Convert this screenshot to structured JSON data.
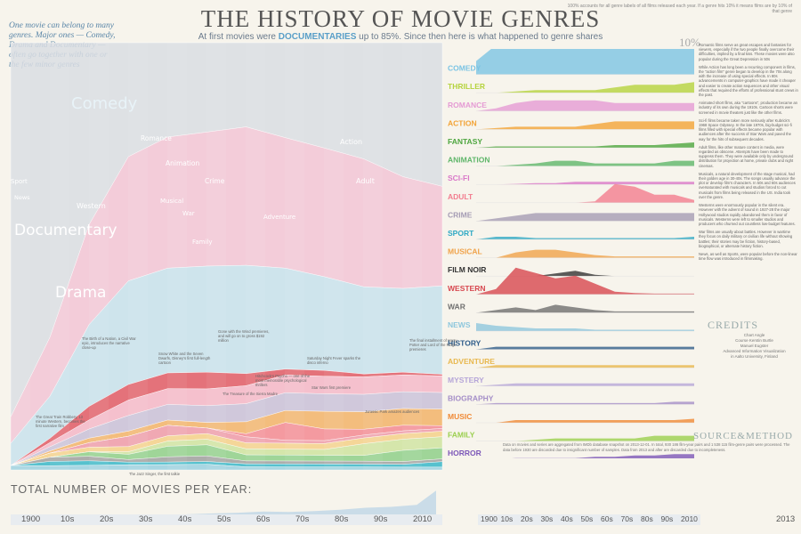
{
  "header": {
    "title": "THE HISTORY OF MOVIE GENRES",
    "subtitle_pre": "At first movies were ",
    "subtitle_em": "DOCUMENTARIES",
    "subtitle_post": " up to 85%. Since then here is what happened to genre shares",
    "intro": "One movie can belong to many genres. Major ones — Comedy, Drama and Documentary — often go together with one or the few minor genres",
    "top_note": "100% accounts for all genre labels of all films released each year. If a genre hits 10% it means films are by 10% of that genre"
  },
  "chart_data": [
    {
      "type": "area",
      "subtype": "stacked-streamgraph",
      "x_range": [
        1900,
        2010
      ],
      "stream_labels": [
        "Comedy",
        "Romance",
        "Action",
        "Animation",
        "Crime",
        "Sport",
        "News",
        "Western",
        "Musical",
        "War",
        "Adventure",
        "Adult",
        "Family",
        "Documentary",
        "Drama"
      ],
      "series": [
        {
          "name": "Documentary",
          "color": "#d9dde3",
          "values": [
            85,
            70,
            40,
            22,
            18,
            16,
            14,
            16,
            18,
            20,
            24,
            26
          ]
        },
        {
          "name": "Drama",
          "color": "#f2c4d6",
          "values": [
            6,
            14,
            22,
            24,
            25,
            24,
            23,
            22,
            22,
            22,
            20,
            18
          ]
        },
        {
          "name": "Comedy",
          "color": "#c7e0ec",
          "values": [
            5,
            10,
            18,
            20,
            20,
            19,
            18,
            17,
            16,
            15,
            15,
            16
          ]
        },
        {
          "name": "Western",
          "color": "#e05a66",
          "values": [
            0,
            1,
            3,
            3,
            3,
            3,
            2,
            1,
            1,
            0.5,
            0.5,
            0.3
          ]
        },
        {
          "name": "Romance",
          "color": "#f4b6c8",
          "values": [
            0,
            1,
            2,
            3,
            3,
            3,
            3,
            3,
            3,
            3,
            3,
            3
          ]
        },
        {
          "name": "Crime",
          "color": "#c9c0d8",
          "values": [
            0,
            1,
            2,
            3,
            3,
            3,
            3,
            3,
            3,
            3,
            3,
            3
          ]
        },
        {
          "name": "Action",
          "color": "#f2b36a",
          "values": [
            0,
            0.5,
            1,
            1,
            1,
            1,
            2,
            2,
            3,
            3,
            3,
            3
          ]
        },
        {
          "name": "Adult",
          "color": "#f38a93",
          "values": [
            0,
            0,
            0,
            0,
            0,
            0,
            0.5,
            3,
            2,
            1,
            1,
            0.5
          ]
        },
        {
          "name": "Musical",
          "color": "#ef9aa9",
          "values": [
            0,
            0,
            1,
            2,
            2,
            1,
            1,
            0.5,
            0.5,
            0.5,
            0.5,
            0.5
          ]
        },
        {
          "name": "Adventure",
          "color": "#f4d08a",
          "values": [
            0,
            1,
            1,
            1,
            1,
            1,
            1,
            1,
            1,
            1,
            1,
            1
          ]
        },
        {
          "name": "Family",
          "color": "#cfe3a0",
          "values": [
            0,
            0,
            0,
            0.5,
            1,
            1,
            1,
            1,
            1,
            2,
            2,
            2
          ]
        },
        {
          "name": "Animation",
          "color": "#8fcf8a",
          "values": [
            0,
            0,
            1,
            1,
            2,
            2,
            1,
            1,
            1,
            1,
            2,
            2
          ]
        },
        {
          "name": "War",
          "color": "#a0a0a0",
          "values": [
            0,
            1,
            1,
            0.5,
            1,
            1,
            0.5,
            0.5,
            0.5,
            0.5,
            0.5,
            0.5
          ]
        },
        {
          "name": "Sport",
          "color": "#39b7c9",
          "values": [
            0,
            1,
            1,
            0.5,
            0.5,
            0.5,
            0.5,
            0.5,
            0.5,
            0.5,
            0.5,
            1
          ]
        },
        {
          "name": "News",
          "color": "#9ad0e0",
          "values": [
            1,
            1,
            1,
            1,
            1,
            1,
            0.5,
            0.5,
            0.5,
            0.5,
            0.5,
            0.5
          ]
        }
      ]
    },
    {
      "type": "area",
      "subtype": "small-multiples",
      "title": "",
      "x_range": [
        1900,
        2010
      ],
      "rows": [
        {
          "name": "COMEDY",
          "color": "#7cc4e4",
          "values": [
            5,
            12,
            18,
            20,
            19,
            18,
            17,
            16,
            15,
            15,
            16,
            17
          ]
        },
        {
          "name": "THRILLER",
          "color": "#b5d33d",
          "values": [
            0,
            0,
            0.5,
            1,
            1,
            1,
            1,
            2,
            3,
            3,
            3,
            4
          ]
        },
        {
          "name": "ROMANCE",
          "color": "#e59bd4",
          "values": [
            0,
            1,
            3,
            4,
            4,
            4,
            4,
            3,
            3,
            3,
            3,
            3
          ]
        },
        {
          "name": "ACTION",
          "color": "#f3a437",
          "values": [
            0,
            0.5,
            1,
            1,
            1,
            1,
            2,
            3,
            3,
            3,
            3,
            3
          ]
        },
        {
          "name": "FANTASY",
          "color": "#4ea63f",
          "values": [
            0,
            0.5,
            0.5,
            0.5,
            0.5,
            0.5,
            0.5,
            1,
            1,
            1,
            1.5,
            2
          ]
        },
        {
          "name": "ANIMATION",
          "color": "#5fb66a",
          "values": [
            0,
            0,
            0.5,
            1,
            2,
            2,
            1,
            1,
            1,
            1,
            2,
            2
          ]
        },
        {
          "name": "SCI-FI",
          "color": "#d978c8",
          "values": [
            0,
            0,
            0.2,
            0.5,
            0.5,
            1,
            1,
            1,
            1,
            1,
            1,
            1
          ]
        },
        {
          "name": "ADULT",
          "color": "#f27d8f",
          "values": [
            0,
            0,
            0,
            0,
            0,
            0,
            0.5,
            7,
            6,
            3,
            3,
            1
          ]
        },
        {
          "name": "CRIME",
          "color": "#a59cb4",
          "values": [
            0,
            1,
            2,
            3,
            3,
            3,
            3,
            3,
            3,
            3,
            3,
            3
          ]
        },
        {
          "name": "SPORT",
          "color": "#2fa9c4",
          "values": [
            0,
            1,
            1,
            0.5,
            0.5,
            0.5,
            0.5,
            0.5,
            0.5,
            0.5,
            0.5,
            1
          ]
        },
        {
          "name": "MUSICAL",
          "color": "#f0a34a",
          "values": [
            0,
            0,
            2,
            3,
            3,
            2,
            1,
            0.5,
            0.5,
            0.5,
            0.5,
            0.5
          ]
        },
        {
          "name": "FILM NOIR",
          "color": "#333333",
          "values": [
            0,
            0,
            0,
            0,
            1,
            2,
            0.5,
            0,
            0,
            0,
            0,
            0
          ]
        },
        {
          "name": "WESTERN",
          "color": "#d7474f",
          "values": [
            0,
            2,
            10,
            8,
            6,
            7,
            4,
            1,
            0.5,
            0.3,
            0.3,
            0.3
          ]
        },
        {
          "name": "WAR",
          "color": "#6f6f6f",
          "values": [
            0,
            1,
            2,
            1,
            3,
            2,
            1,
            0.5,
            0.5,
            0.5,
            0.5,
            0.5
          ]
        },
        {
          "name": "NEWS",
          "color": "#8ec7dd",
          "values": [
            3,
            2,
            1.5,
            1,
            1,
            1,
            0.5,
            0.5,
            0.5,
            0.5,
            0.5,
            0.5
          ]
        },
        {
          "name": "HISTORY",
          "color": "#2f5d8a",
          "values": [
            0,
            1,
            1,
            1,
            1,
            1,
            1,
            1,
            1,
            1,
            1,
            1
          ]
        },
        {
          "name": "ADVENTURE",
          "color": "#e8b84f",
          "values": [
            0,
            1,
            1,
            1,
            1,
            1,
            1,
            1,
            1,
            1,
            1,
            1
          ]
        },
        {
          "name": "MYSTERY",
          "color": "#b6a6d8",
          "values": [
            0,
            0.5,
            1,
            1,
            1,
            1,
            1,
            1,
            1,
            1,
            1,
            1
          ]
        },
        {
          "name": "BIOGRAPHY",
          "color": "#a58fc8",
          "values": [
            0,
            0.5,
            0.5,
            0.5,
            0.5,
            0.5,
            0.5,
            0.5,
            0.5,
            0.5,
            1,
            1
          ]
        },
        {
          "name": "MUSIC",
          "color": "#f08a36",
          "values": [
            0,
            0,
            1,
            1,
            1,
            1,
            1,
            1,
            1,
            1,
            1,
            1.5
          ]
        },
        {
          "name": "FAMILY",
          "color": "#9bcf4f",
          "values": [
            0,
            0,
            0,
            0.5,
            1,
            1,
            1,
            1,
            1,
            2,
            2,
            2
          ]
        },
        {
          "name": "HORROR",
          "color": "#7d58b8",
          "values": [
            0,
            0,
            0.5,
            0.5,
            0.5,
            0.5,
            1,
            1,
            1.5,
            1.5,
            2,
            2
          ]
        }
      ]
    },
    {
      "type": "area",
      "title": "TOTAL NUMBER OF MOVIES PER YEAR:",
      "x": [
        "1900",
        "10s",
        "20s",
        "30s",
        "40s",
        "50s",
        "60s",
        "70s",
        "80s",
        "90s",
        "2010"
      ],
      "values": [
        50,
        400,
        700,
        1200,
        1000,
        1400,
        2000,
        2800,
        3200,
        4000,
        12000
      ]
    }
  ],
  "axis": {
    "left_ticks": [
      "1900",
      "10s",
      "20s",
      "30s",
      "40s",
      "50s",
      "60s",
      "70s",
      "80s",
      "90s",
      "2010"
    ],
    "right_ticks": [
      "1900",
      "10s",
      "20s",
      "30s",
      "40s",
      "50s",
      "60s",
      "70s",
      "80s",
      "90s",
      "2010"
    ],
    "right_end": "2013"
  },
  "right_panel": {
    "ten_pct": "10%",
    "paragraphs": [
      "Romantic films serve as great escapes and fantasies for viewers, especially if the two people finally overcome their difficulties, implied by a final kiss. These movies were also popular during the Great Depression in 50s",
      "While Action has long been a recurring component in films, the \"action film\" genre began to develop in the 70s along with the increase of using special effects. In 80s advancements in computer-graphics have made it cheaper and easier to create action sequences and other visual effects that required the efforts of professional stunt crews in the past.",
      "Animated short films, aka \"cartoons\", production became an industry of its own during the 1910s. Cartoon shorts were screened in movie theaters just like the other films.",
      "Sci-fi films became taken more seriously after Kubrick's 1968 Space Odyssey. In the late 1970s, big-budget sci-fi films filled with special effects became popular with audiences after the success of Star Wars and paved the way for the hits of subsequent decades.",
      "Adult films, like other mature content in media, were regarded as obscene. Attempts have been made to suppress them. They were available only by underground distribution for projection at home, private clubs and night cinemas.",
      "Musicals, a natural development of the stage musical, had their golden age in 30-40s. The songs usually advance the plot or develop film's characters. In 50s and 60s audiences oversaturated with musicals and studios forced to cut musicals from films being released in the US. India took over the genre.",
      "Westerns were enormously popular in the silent era. However with the advent of sound in 1927-28 the major Hollywood studios rapidly abandoned them in favor of musicals. Westerns were left to smaller studios and producers who churned out countless low-budget features.",
      "War films are usually about battles. However in wartime they focus on daily military or civilian life without showing battles; their stories may be fiction, history-based, biographical, or alternate history fiction.",
      "News, as well as Sports, were popular before the non-linear time flow was introduced in filmmaking."
    ],
    "credits_title": "CREDITS",
    "credits": [
      "Chart  Angle",
      "Course  Kerstin Burtle",
      "Manuel Eugster",
      "Advanced Information Visualization",
      "in Aalto University, Finland"
    ],
    "source_title": "SOURCE&METHOD",
    "source_text": "Data on movies and series are aggregated from IMDb database snapshot on 2013-12-01. In total, 930 186 film-year pairs and 1 538 115 film-genre pairs were processed. The data before 1930 are discarded due to insignificant number of samples. Data from 2013 and after are discarded due to incompleteness."
  },
  "timeline": [
    {
      "year": "1903",
      "text": "The Great Train Robbery, 13 minute Western, becomes the first narrative film"
    },
    {
      "year": "1915",
      "text": "The Birth of a Nation, a Civil War epic, introduces the narrative close-up"
    },
    {
      "year": "1927",
      "text": "The Jazz Singer, the first talkie"
    },
    {
      "year": "1937",
      "text": "Snow White and the Seven Dwarfs, Disney's first full-length cartoon"
    },
    {
      "year": "1939",
      "text": "Gone with the Wind premieres, and will go on to gross $192 million"
    },
    {
      "year": "1948",
      "text": "The Treasure of the Sierra Madre"
    },
    {
      "year": "1960",
      "text": "Hitchcock's Psycho — one of the most memorable psychological thrillers"
    },
    {
      "year": "1972",
      "text": "Saturday Night Fever sparks the disco inferno"
    },
    {
      "year": "1977",
      "text": "Star Wars first premiere"
    },
    {
      "year": "1993",
      "text": "Jurassic Park amazes audiences"
    },
    {
      "year": "2001",
      "text": "The final installment of Harry Potter and Lord of the Rings premieres"
    }
  ]
}
